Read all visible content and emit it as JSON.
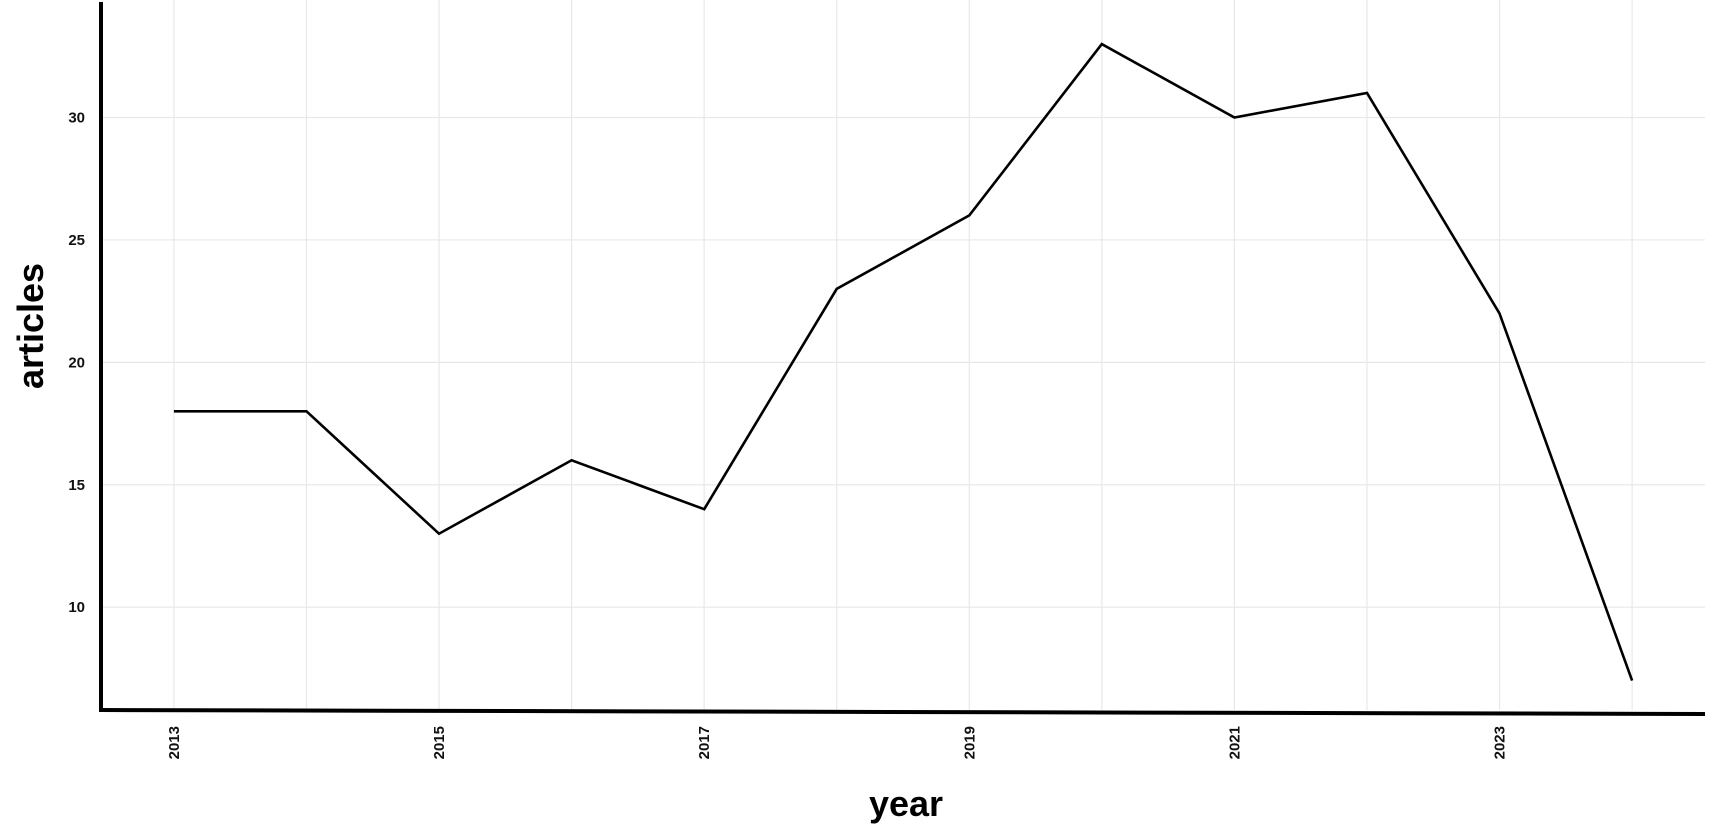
{
  "chart_data": {
    "type": "line",
    "xlabel": "year",
    "ylabel": "articles",
    "x": [
      2013,
      2014,
      2015,
      2016,
      2017,
      2018,
      2019,
      2020,
      2021,
      2022,
      2023,
      2024
    ],
    "y": [
      18,
      18,
      13,
      16,
      14,
      23,
      26,
      33,
      30,
      31,
      22,
      7
    ],
    "x_ticks": [
      "2013",
      "2015",
      "2017",
      "2019",
      "2021",
      "2023"
    ],
    "y_ticks": [
      "10",
      "15",
      "20",
      "25",
      "30"
    ],
    "xlim": [
      2012.45,
      2024.55
    ],
    "ylim": [
      5.8,
      34.8
    ],
    "grid": true,
    "legend": "none",
    "colors": {
      "line": "#000000",
      "grid": "#e8e8e8",
      "axis": "#000000"
    }
  }
}
